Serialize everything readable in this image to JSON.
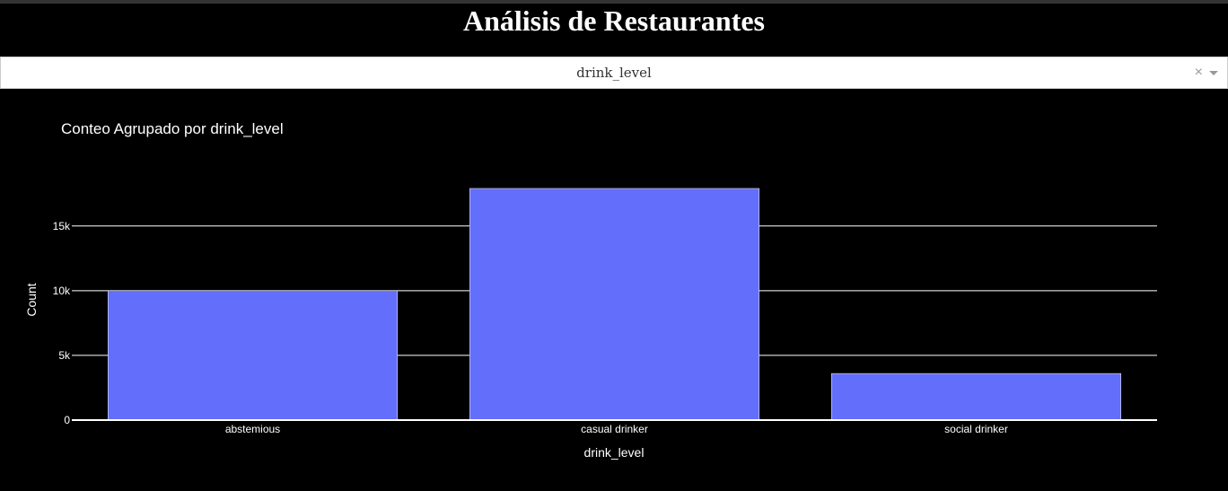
{
  "page": {
    "title": "Análisis de Restaurantes"
  },
  "dropdown": {
    "selected": "drink_level",
    "clear_symbol": "×"
  },
  "colors": {
    "background": "#000000",
    "bar": "#636efa",
    "text": "#ffffff",
    "grid": "#ffffff"
  },
  "chart_data": {
    "type": "bar",
    "title": "Conteo Agrupado por drink_level",
    "xlabel": "drink_level",
    "ylabel": "Count",
    "categories": [
      "abstemious",
      "casual drinker",
      "social drinker"
    ],
    "values": [
      10000,
      17900,
      3600
    ],
    "ylim": [
      0,
      18800
    ],
    "yticks": [
      0,
      5000,
      10000,
      15000
    ],
    "ytick_labels": [
      "0",
      "5k",
      "10k",
      "15k"
    ],
    "grid": true
  }
}
